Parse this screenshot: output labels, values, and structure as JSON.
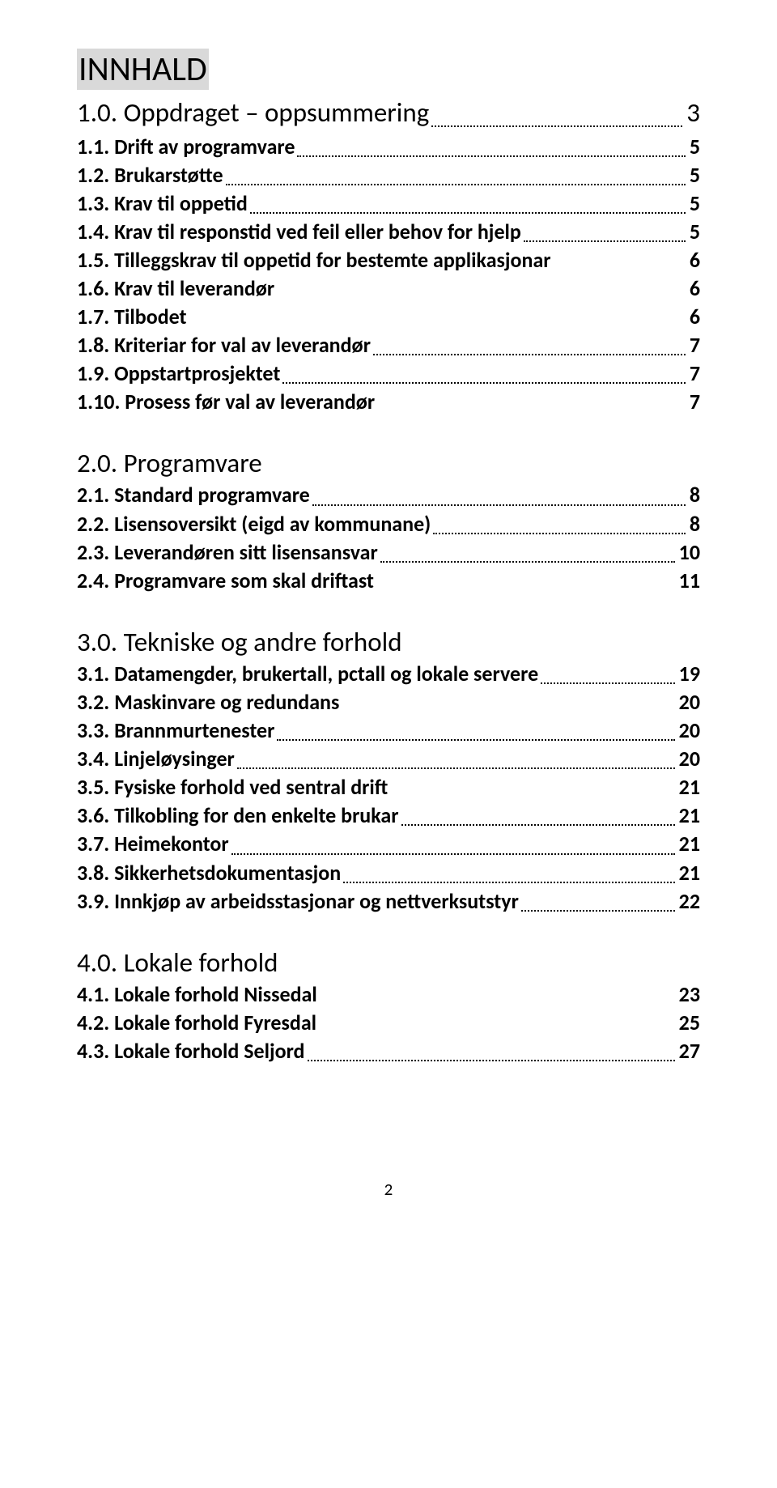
{
  "title": "INNHALD",
  "pageNumber": "2",
  "colors": {
    "text": "#000000",
    "titleBg": "#d9d9d9",
    "background": "#ffffff"
  },
  "typography": {
    "titleFontSize": 42,
    "sectionFontSize": 33,
    "subsectionFontSize": 26,
    "itemFontSize": 23,
    "fontFamily": "Calibri"
  },
  "entries": [
    {
      "label": "1.0. Oppdraget – oppsummering",
      "page": "3",
      "size": "big",
      "bold": false,
      "leaderStyle": "mix",
      "section": "first"
    },
    {
      "label": "1.1. Drift av programvare",
      "page": "5",
      "size": "med",
      "bold": true,
      "leaderStyle": "dots"
    },
    {
      "label": "1.2. Brukarstøtte",
      "page": "5",
      "size": "med",
      "bold": true,
      "leaderStyle": "dots"
    },
    {
      "label": "1.3. Krav til oppetid",
      "page": "5",
      "size": "med",
      "bold": true,
      "leaderStyle": "dots"
    },
    {
      "label": "1.4. Krav til responstid ved feil eller behov for hjelp",
      "page": "5",
      "size": "med",
      "bold": true,
      "leaderStyle": "dots"
    },
    {
      "label": "1.5. Tilleggskrav til oppetid for bestemte applikasjonar",
      "page": "6",
      "size": "med",
      "bold": true,
      "leaderStyle": "none"
    },
    {
      "label": "1.6. Krav til leverandør",
      "page": "6",
      "size": "med",
      "bold": true,
      "leaderStyle": "none"
    },
    {
      "label": "1.7. Tilbodet",
      "page": "6",
      "size": "med",
      "bold": true,
      "leaderStyle": "none"
    },
    {
      "label": "1.8. Kriteriar for val av leverandør",
      "page": "7",
      "size": "med",
      "bold": true,
      "leaderStyle": "dots"
    },
    {
      "label": "1.9. Oppstartprosjektet",
      "page": "7",
      "size": "med",
      "bold": true,
      "leaderStyle": "dots"
    },
    {
      "label": "1.10. Prosess før val av leverandør",
      "page": "7",
      "size": "med",
      "bold": true,
      "leaderStyle": "none"
    },
    {
      "label": "2.0. Programvare",
      "page": "",
      "size": "big",
      "bold": false,
      "leaderStyle": "nopage",
      "section": "true"
    },
    {
      "label": "2.1. Standard programvare",
      "page": "8",
      "size": "med",
      "bold": true,
      "leaderStyle": "dots"
    },
    {
      "label": "2.2. Lisensoversikt (eigd av kommunane)",
      "page": "8",
      "size": "med",
      "bold": true,
      "leaderStyle": "dots"
    },
    {
      "label": "2.3. Leverandøren sitt lisensansvar",
      "page": "10",
      "size": "med",
      "bold": true,
      "leaderStyle": "dots"
    },
    {
      "label": "2.4. Programvare som skal driftast",
      "page": "11",
      "size": "med",
      "bold": true,
      "leaderStyle": "none"
    },
    {
      "label": "3.0. Tekniske og andre forhold",
      "page": "",
      "size": "big",
      "bold": false,
      "leaderStyle": "nopage",
      "section": "true"
    },
    {
      "label": "3.1. Datamengder, brukertall, pctall og lokale servere",
      "page": "19",
      "size": "med",
      "bold": true,
      "leaderStyle": "dots"
    },
    {
      "label": "3.2. Maskinvare og redundans",
      "page": "20",
      "size": "med",
      "bold": true,
      "leaderStyle": "none"
    },
    {
      "label": "3.3. Brannmurtenester",
      "page": "20",
      "size": "med",
      "bold": true,
      "leaderStyle": "dots"
    },
    {
      "label": "3.4. Linjeløysinger",
      "page": "20",
      "size": "med",
      "bold": true,
      "leaderStyle": "dots"
    },
    {
      "label": "3.5. Fysiske forhold ved sentral drift",
      "page": "21",
      "size": "med",
      "bold": true,
      "leaderStyle": "none"
    },
    {
      "label": "3.6. Tilkobling for den enkelte brukar",
      "page": "21",
      "size": "med",
      "bold": true,
      "leaderStyle": "dots"
    },
    {
      "label": "3.7. Heimekontor",
      "page": "21",
      "size": "med",
      "bold": true,
      "leaderStyle": "dots"
    },
    {
      "label": "3.8. Sikkerhetsdokumentasjon",
      "page": "21",
      "size": "med",
      "bold": true,
      "leaderStyle": "dots"
    },
    {
      "label": "3.9. Innkjøp av arbeidsstasjonar og nettverksutstyr",
      "page": "22",
      "size": "med",
      "bold": true,
      "leaderStyle": "dots"
    },
    {
      "label": "4.0. Lokale forhold",
      "page": "",
      "size": "big",
      "bold": false,
      "leaderStyle": "nopage",
      "section": "true"
    },
    {
      "label": "4.1. Lokale forhold Nissedal",
      "page": "23",
      "size": "med",
      "bold": true,
      "leaderStyle": "none"
    },
    {
      "label": "4.2. Lokale forhold Fyresdal",
      "page": "25",
      "size": "med",
      "bold": true,
      "leaderStyle": "none"
    },
    {
      "label": "4.3. Lokale forhold Seljord",
      "page": "27",
      "size": "med",
      "bold": true,
      "leaderStyle": "dots"
    }
  ]
}
